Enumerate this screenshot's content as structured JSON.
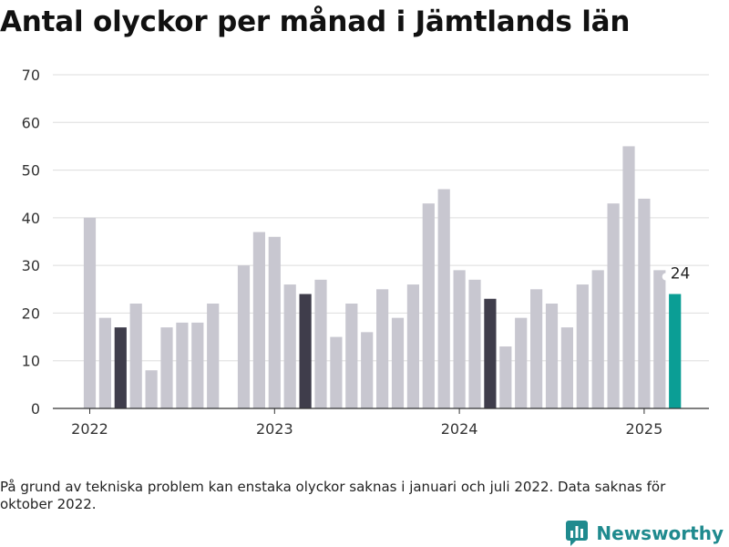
{
  "title": "Antal olyckor per månad i Jämtlands län",
  "footnote": "På grund av tekniska problem kan enstaka olyckor saknas i januari och juli 2022. Data saknas för oktober 2022.",
  "brand": {
    "name": "Newsworthy",
    "icon": "newsworthy-logo-icon"
  },
  "colors": {
    "bar": "#c8c7d0",
    "highlight_march": "#3f3d4b",
    "latest": "#0b9e95",
    "grid": "#dddddd",
    "axis": "#333333",
    "brand": "#1f8a8e"
  },
  "chart_data": {
    "type": "bar",
    "title": "Antal olyckor per månad i Jämtlands län",
    "xlabel": "",
    "ylabel": "",
    "ylim": [
      0,
      70
    ],
    "yticks": [
      0,
      10,
      20,
      30,
      40,
      50,
      60,
      70
    ],
    "grid": true,
    "x_tick_labels": [
      "2022",
      "2023",
      "2024",
      "2025"
    ],
    "categories": [
      "2022-01",
      "2022-02",
      "2022-03",
      "2022-04",
      "2022-05",
      "2022-06",
      "2022-07",
      "2022-08",
      "2022-09",
      "2022-10",
      "2022-11",
      "2022-12",
      "2023-01",
      "2023-02",
      "2023-03",
      "2023-04",
      "2023-05",
      "2023-06",
      "2023-07",
      "2023-08",
      "2023-09",
      "2023-10",
      "2023-11",
      "2023-12",
      "2024-01",
      "2024-02",
      "2024-03",
      "2024-04",
      "2024-05",
      "2024-06",
      "2024-07",
      "2024-08",
      "2024-09",
      "2024-10",
      "2024-11",
      "2024-12",
      "2025-01",
      "2025-02",
      "2025-03"
    ],
    "values": [
      40,
      19,
      17,
      22,
      8,
      17,
      18,
      18,
      22,
      null,
      30,
      37,
      36,
      26,
      24,
      27,
      15,
      22,
      16,
      25,
      19,
      26,
      43,
      46,
      29,
      27,
      23,
      13,
      19,
      25,
      22,
      17,
      26,
      29,
      43,
      55,
      44,
      29,
      24
    ],
    "highlight_months": [
      "2022-03",
      "2023-03",
      "2024-03"
    ],
    "latest_month": "2025-03",
    "annotations": [
      {
        "category": "2025-03",
        "text": "24"
      }
    ]
  }
}
